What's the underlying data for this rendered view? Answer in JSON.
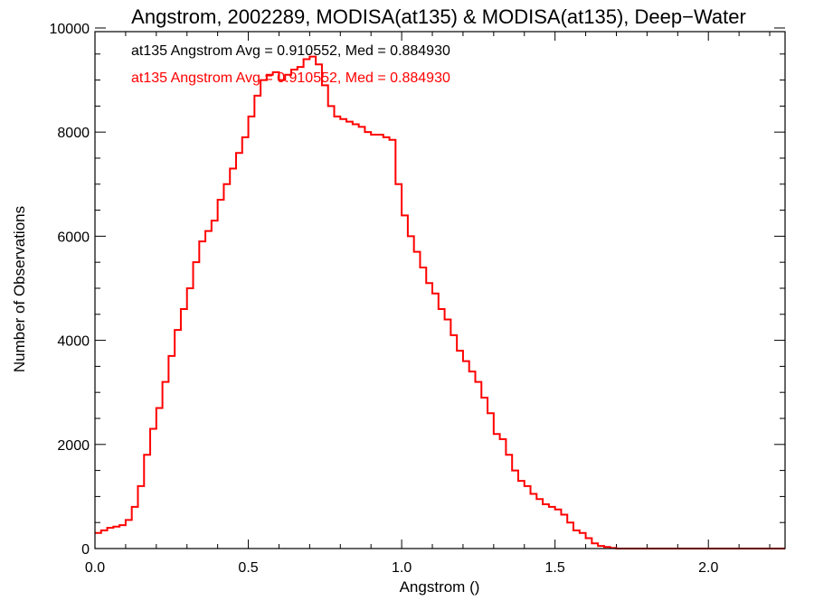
{
  "chart_data": {
    "type": "line",
    "title": "Angstrom, 2002289, MODISA(at135) & MODISA(at135), Deep−Water",
    "xlabel": "Angstrom ()",
    "ylabel": "Number of Observations",
    "xlim": [
      0.0,
      2.25
    ],
    "ylim": [
      0,
      10000
    ],
    "xticks": [
      0.0,
      0.5,
      1.0,
      1.5,
      2.0
    ],
    "xtick_labels": [
      "0.0",
      "0.5",
      "1.0",
      "1.5",
      "2.0"
    ],
    "yticks": [
      0,
      2000,
      4000,
      6000,
      8000,
      10000
    ],
    "ytick_labels": [
      "0",
      "2000",
      "4000",
      "6000",
      "8000",
      "10000"
    ],
    "grid": false,
    "annotations": [
      {
        "text": "at135 Angstrom Avg = 0.910552, Med = 0.884930",
        "color": "#000000"
      },
      {
        "text": "at135 Angstrom Avg = 0.910552, Med = 0.884930",
        "color": "#ff0000"
      }
    ],
    "series": [
      {
        "color": "#ff0000",
        "step": true,
        "x": [
          0.0,
          0.02,
          0.04,
          0.06,
          0.08,
          0.1,
          0.12,
          0.14,
          0.16,
          0.18,
          0.2,
          0.22,
          0.24,
          0.26,
          0.28,
          0.3,
          0.32,
          0.34,
          0.36,
          0.38,
          0.4,
          0.42,
          0.44,
          0.46,
          0.48,
          0.5,
          0.52,
          0.54,
          0.56,
          0.58,
          0.6,
          0.62,
          0.64,
          0.66,
          0.68,
          0.7,
          0.72,
          0.74,
          0.76,
          0.78,
          0.8,
          0.82,
          0.84,
          0.86,
          0.88,
          0.9,
          0.92,
          0.94,
          0.96,
          0.98,
          1.0,
          1.02,
          1.04,
          1.06,
          1.08,
          1.1,
          1.12,
          1.14,
          1.16,
          1.18,
          1.2,
          1.22,
          1.24,
          1.26,
          1.28,
          1.3,
          1.32,
          1.34,
          1.36,
          1.38,
          1.4,
          1.42,
          1.44,
          1.46,
          1.48,
          1.5,
          1.52,
          1.54,
          1.56,
          1.58,
          1.6,
          1.62,
          1.64,
          1.66,
          1.68,
          1.7,
          1.72,
          1.74,
          1.76,
          1.78,
          1.8,
          1.82,
          1.84,
          1.86,
          1.88,
          1.9,
          1.92,
          1.94,
          1.96,
          1.98,
          2.0,
          2.02,
          2.04,
          2.06,
          2.08,
          2.1,
          2.12,
          2.14,
          2.16,
          2.18,
          2.2,
          2.22,
          2.24
        ],
        "y": [
          300,
          350,
          400,
          420,
          450,
          550,
          800,
          1200,
          1800,
          2300,
          2700,
          3200,
          3700,
          4200,
          4600,
          5000,
          5500,
          5900,
          6100,
          6300,
          6700,
          7000,
          7300,
          7600,
          7900,
          8300,
          8700,
          9000,
          9100,
          9150,
          9000,
          9100,
          9200,
          9250,
          9400,
          9450,
          9300,
          8900,
          8500,
          8300,
          8250,
          8200,
          8150,
          8100,
          8000,
          7950,
          7950,
          7900,
          7850,
          7000,
          6400,
          6000,
          5700,
          5400,
          5100,
          4900,
          4600,
          4400,
          4100,
          3800,
          3600,
          3400,
          3200,
          2900,
          2600,
          2200,
          2100,
          1800,
          1500,
          1300,
          1200,
          1050,
          950,
          850,
          800,
          750,
          650,
          500,
          350,
          300,
          200,
          100,
          50,
          30,
          10,
          0,
          0,
          0,
          0,
          0,
          0,
          0,
          0,
          0,
          0,
          0,
          0,
          0,
          0,
          0,
          0,
          0,
          0,
          0,
          0,
          0,
          0,
          0,
          0,
          0,
          0,
          0,
          0
        ]
      }
    ]
  }
}
